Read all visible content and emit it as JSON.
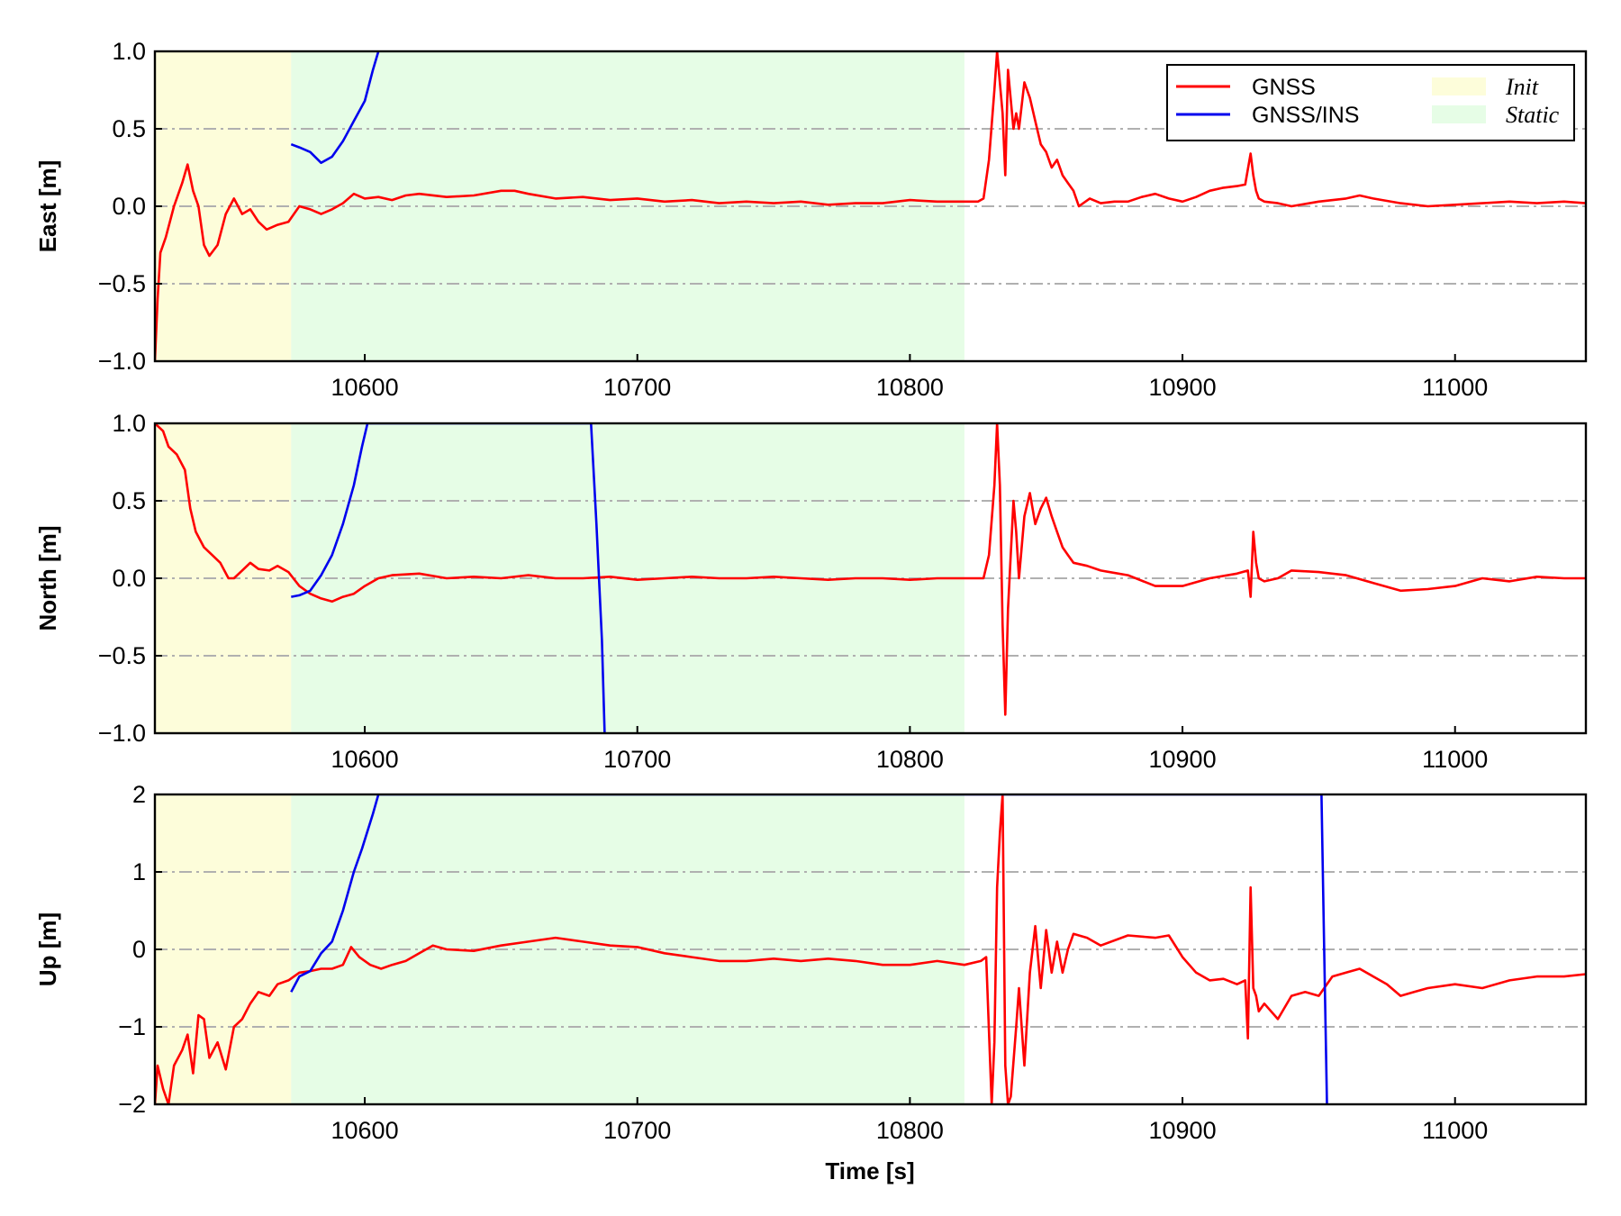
{
  "chart_data": [
    {
      "type": "line",
      "ylabel": "East [m]",
      "xlabel": "",
      "xlim": [
        10523,
        11048
      ],
      "ylim": [
        -1.0,
        1.0
      ],
      "xticks": [
        10600,
        10700,
        10800,
        10900,
        11000
      ],
      "xtick_labels": [
        "10600",
        "10700",
        "10800",
        "10900",
        "11000"
      ],
      "yticks": [
        -1.0,
        -0.5,
        0.0,
        0.5,
        1.0
      ],
      "ytick_labels": [
        "−1.0",
        "−0.5",
        "0.0",
        "0.5",
        "1.0"
      ],
      "grid": "horizontal dash-dot",
      "shaded_regions": [
        {
          "name": "Init",
          "x": [
            10523,
            10573
          ],
          "color": "#fdfdda"
        },
        {
          "name": "Static",
          "x": [
            10573,
            10820
          ],
          "color": "#e6fde6"
        }
      ],
      "legend": {
        "placement": "top-right",
        "entries": [
          {
            "label": "GNSS",
            "kind": "line",
            "color": "#ff0000"
          },
          {
            "label": "Init",
            "kind": "patch",
            "color": "#fdfdda"
          },
          {
            "label": "GNSS/INS",
            "kind": "line",
            "color": "#0000ee"
          },
          {
            "label": "Static",
            "kind": "patch",
            "color": "#e6fde6"
          }
        ]
      },
      "series": [
        {
          "name": "GNSS",
          "color": "#ff0000",
          "x": [
            10523,
            10524,
            10525,
            10527,
            10530,
            10533,
            10535,
            10537,
            10539,
            10541,
            10543,
            10546,
            10549,
            10552,
            10555,
            10558,
            10561,
            10564,
            10568,
            10572,
            10576,
            10580,
            10584,
            10588,
            10592,
            10596,
            10600,
            10605,
            10610,
            10615,
            10620,
            10630,
            10640,
            10650,
            10655,
            10660,
            10670,
            10680,
            10690,
            10700,
            10710,
            10720,
            10730,
            10740,
            10750,
            10760,
            10770,
            10780,
            10790,
            10800,
            10810,
            10820,
            10825,
            10827,
            10829,
            10831,
            10832,
            10834,
            10835,
            10836,
            10838,
            10839,
            10840,
            10842,
            10844,
            10846,
            10848,
            10850,
            10852,
            10854,
            10856,
            10858,
            10860,
            10862,
            10866,
            10870,
            10875,
            10880,
            10885,
            10890,
            10895,
            10900,
            10905,
            10910,
            10915,
            10920,
            10923,
            10925,
            10926,
            10927,
            10928,
            10930,
            10935,
            10940,
            10950,
            10960,
            10965,
            10970,
            10980,
            10990,
            11000,
            11010,
            11020,
            11030,
            11040,
            11048
          ],
          "y": [
            -1.0,
            -0.6,
            -0.3,
            -0.2,
            0.0,
            0.15,
            0.27,
            0.1,
            0.0,
            -0.25,
            -0.32,
            -0.25,
            -0.05,
            0.05,
            -0.05,
            -0.02,
            -0.1,
            -0.15,
            -0.12,
            -0.1,
            0.0,
            -0.02,
            -0.05,
            -0.02,
            0.02,
            0.08,
            0.05,
            0.06,
            0.04,
            0.07,
            0.08,
            0.06,
            0.07,
            0.1,
            0.1,
            0.08,
            0.05,
            0.06,
            0.04,
            0.05,
            0.03,
            0.04,
            0.02,
            0.03,
            0.02,
            0.03,
            0.01,
            0.02,
            0.02,
            0.04,
            0.03,
            0.03,
            0.03,
            0.05,
            0.3,
            0.75,
            1.0,
            0.6,
            0.2,
            0.88,
            0.5,
            0.6,
            0.5,
            0.8,
            0.7,
            0.55,
            0.4,
            0.35,
            0.25,
            0.3,
            0.2,
            0.15,
            0.1,
            0.0,
            0.05,
            0.02,
            0.03,
            0.03,
            0.06,
            0.08,
            0.05,
            0.03,
            0.06,
            0.1,
            0.12,
            0.13,
            0.14,
            0.34,
            0.2,
            0.1,
            0.05,
            0.03,
            0.02,
            0.0,
            0.03,
            0.05,
            0.07,
            0.05,
            0.02,
            0.0,
            0.01,
            0.02,
            0.03,
            0.02,
            0.03,
            0.02
          ]
        },
        {
          "name": "GNSS/INS",
          "color": "#0000ee",
          "x": [
            10573,
            10576,
            10580,
            10584,
            10588,
            10592,
            10596,
            10600,
            10603,
            10605
          ],
          "y": [
            0.4,
            0.38,
            0.35,
            0.28,
            0.32,
            0.42,
            0.55,
            0.68,
            0.88,
            1.0
          ]
        }
      ]
    },
    {
      "type": "line",
      "ylabel": "North [m]",
      "xlabel": "",
      "xlim": [
        10523,
        11048
      ],
      "ylim": [
        -1.0,
        1.0
      ],
      "xticks": [
        10600,
        10700,
        10800,
        10900,
        11000
      ],
      "xtick_labels": [
        "10600",
        "10700",
        "10800",
        "10900",
        "11000"
      ],
      "yticks": [
        -1.0,
        -0.5,
        0.0,
        0.5,
        1.0
      ],
      "ytick_labels": [
        "−1.0",
        "−0.5",
        "0.0",
        "0.5",
        "1.0"
      ],
      "grid": "horizontal dash-dot",
      "shaded_regions": [
        {
          "name": "Init",
          "x": [
            10523,
            10573
          ],
          "color": "#fdfdda"
        },
        {
          "name": "Static",
          "x": [
            10573,
            10820
          ],
          "color": "#e6fde6"
        }
      ],
      "series": [
        {
          "name": "GNSS",
          "color": "#ff0000",
          "x": [
            10523,
            10526,
            10528,
            10531,
            10534,
            10536,
            10538,
            10541,
            10544,
            10547,
            10550,
            10552,
            10555,
            10558,
            10561,
            10565,
            10568,
            10572,
            10576,
            10580,
            10584,
            10588,
            10592,
            10596,
            10600,
            10605,
            10610,
            10620,
            10630,
            10640,
            10650,
            10660,
            10670,
            10680,
            10690,
            10700,
            10710,
            10720,
            10730,
            10740,
            10750,
            10760,
            10770,
            10780,
            10790,
            10800,
            10810,
            10820,
            10827,
            10829,
            10831,
            10832,
            10833,
            10834,
            10835,
            10836,
            10838,
            10839,
            10840,
            10842,
            10844,
            10846,
            10848,
            10850,
            10852,
            10854,
            10856,
            10858,
            10860,
            10865,
            10870,
            10880,
            10890,
            10900,
            10910,
            10920,
            10924,
            10925,
            10926,
            10927,
            10928,
            10930,
            10935,
            10940,
            10950,
            10960,
            10970,
            10980,
            10990,
            11000,
            11010,
            11020,
            11030,
            11040,
            11048
          ],
          "y": [
            1.0,
            0.95,
            0.85,
            0.8,
            0.7,
            0.45,
            0.3,
            0.2,
            0.15,
            0.1,
            0.0,
            0.0,
            0.05,
            0.1,
            0.06,
            0.05,
            0.08,
            0.04,
            -0.05,
            -0.1,
            -0.13,
            -0.15,
            -0.12,
            -0.1,
            -0.05,
            0.0,
            0.02,
            0.03,
            0.0,
            0.01,
            0.0,
            0.02,
            0.0,
            0.0,
            0.01,
            -0.01,
            0.0,
            0.01,
            0.0,
            0.0,
            0.01,
            0.0,
            -0.01,
            0.0,
            0.0,
            -0.01,
            0.0,
            0.0,
            0.0,
            0.15,
            0.6,
            1.0,
            0.6,
            -0.3,
            -0.88,
            -0.2,
            0.5,
            0.3,
            0.0,
            0.4,
            0.55,
            0.35,
            0.45,
            0.52,
            0.4,
            0.3,
            0.2,
            0.15,
            0.1,
            0.08,
            0.05,
            0.02,
            -0.05,
            -0.05,
            0.0,
            0.03,
            0.05,
            -0.12,
            0.3,
            0.1,
            0.0,
            -0.02,
            0.0,
            0.05,
            0.04,
            0.02,
            -0.03,
            -0.08,
            -0.07,
            -0.05,
            0.0,
            -0.02,
            0.01,
            0.0,
            0.0
          ]
        },
        {
          "name": "GNSS/INS",
          "color": "#0000ee",
          "x": [
            10573,
            10576,
            10580,
            10584,
            10588,
            10592,
            10596,
            10599,
            10601,
            10683,
            10685,
            10687,
            10688
          ],
          "y": [
            -0.12,
            -0.11,
            -0.08,
            0.02,
            0.15,
            0.35,
            0.6,
            0.85,
            1.0,
            1.0,
            0.35,
            -0.4,
            -1.0
          ]
        }
      ]
    },
    {
      "type": "line",
      "ylabel": "Up [m]",
      "xlabel": "Time [s]",
      "xlim": [
        10523,
        11048
      ],
      "ylim": [
        -2,
        2
      ],
      "xticks": [
        10600,
        10700,
        10800,
        10900,
        11000
      ],
      "xtick_labels": [
        "10600",
        "10700",
        "10800",
        "10900",
        "11000"
      ],
      "yticks": [
        -2,
        -1,
        0,
        1,
        2
      ],
      "ytick_labels": [
        "−2",
        "−1",
        "0",
        "1",
        "2"
      ],
      "grid": "horizontal dash-dot",
      "shaded_regions": [
        {
          "name": "Init",
          "x": [
            10523,
            10573
          ],
          "color": "#fdfdda"
        },
        {
          "name": "Static",
          "x": [
            10573,
            10820
          ],
          "color": "#e6fde6"
        }
      ],
      "series": [
        {
          "name": "GNSS",
          "color": "#ff0000",
          "x": [
            10523,
            10524,
            10526,
            10528,
            10530,
            10533,
            10535,
            10537,
            10539,
            10541,
            10543,
            10546,
            10549,
            10552,
            10555,
            10558,
            10561,
            10565,
            10568,
            10572,
            10576,
            10580,
            10584,
            10588,
            10592,
            10595,
            10598,
            10602,
            10606,
            10610,
            10615,
            10620,
            10625,
            10630,
            10640,
            10650,
            10660,
            10670,
            10680,
            10690,
            10700,
            10710,
            10720,
            10730,
            10740,
            10750,
            10760,
            10770,
            10780,
            10790,
            10800,
            10810,
            10820,
            10826,
            10828,
            10830,
            10831,
            10832,
            10833,
            10834,
            10835,
            10836,
            10837,
            10839,
            10840,
            10842,
            10844,
            10846,
            10848,
            10850,
            10852,
            10854,
            10856,
            10858,
            10860,
            10865,
            10870,
            10880,
            10890,
            10895,
            10900,
            10905,
            10910,
            10915,
            10920,
            10923,
            10924,
            10925,
            10926,
            10927,
            10928,
            10930,
            10935,
            10940,
            10945,
            10950,
            10955,
            10960,
            10965,
            10970,
            10975,
            10980,
            10985,
            10990,
            11000,
            11010,
            11020,
            11030,
            11040,
            11048
          ],
          "y": [
            -2.0,
            -1.5,
            -1.8,
            -2.0,
            -1.5,
            -1.3,
            -1.1,
            -1.6,
            -0.85,
            -0.9,
            -1.4,
            -1.2,
            -1.55,
            -1.0,
            -0.9,
            -0.7,
            -0.55,
            -0.6,
            -0.45,
            -0.4,
            -0.3,
            -0.28,
            -0.25,
            -0.25,
            -0.2,
            0.03,
            -0.1,
            -0.2,
            -0.25,
            -0.2,
            -0.15,
            -0.05,
            0.05,
            0.0,
            -0.02,
            0.05,
            0.1,
            0.15,
            0.1,
            0.05,
            0.03,
            -0.05,
            -0.1,
            -0.15,
            -0.15,
            -0.12,
            -0.15,
            -0.12,
            -0.15,
            -0.2,
            -0.2,
            -0.15,
            -0.2,
            -0.15,
            -0.1,
            -2.0,
            -1.2,
            0.8,
            1.5,
            2.0,
            -1.5,
            -2.0,
            -1.9,
            -1.0,
            -0.5,
            -1.5,
            -0.3,
            0.3,
            -0.5,
            0.25,
            -0.3,
            0.1,
            -0.3,
            0.0,
            0.2,
            0.15,
            0.05,
            0.18,
            0.15,
            0.18,
            -0.1,
            -0.3,
            -0.4,
            -0.38,
            -0.45,
            -0.4,
            -1.15,
            0.8,
            -0.5,
            -0.6,
            -0.8,
            -0.7,
            -0.9,
            -0.6,
            -0.55,
            -0.6,
            -0.35,
            -0.3,
            -0.25,
            -0.35,
            -0.45,
            -0.6,
            -0.55,
            -0.5,
            -0.45,
            -0.5,
            -0.4,
            -0.35,
            -0.35,
            -0.32
          ]
        },
        {
          "name": "GNSS/INS",
          "color": "#0000ee",
          "x": [
            10573,
            10576,
            10580,
            10584,
            10588,
            10592,
            10596,
            10599,
            10603,
            10605,
            10951,
            10952,
            10953
          ],
          "y": [
            -0.55,
            -0.35,
            -0.28,
            -0.05,
            0.1,
            0.5,
            1.0,
            1.3,
            1.75,
            2.0,
            2.0,
            0.0,
            -2.0
          ]
        }
      ]
    }
  ]
}
